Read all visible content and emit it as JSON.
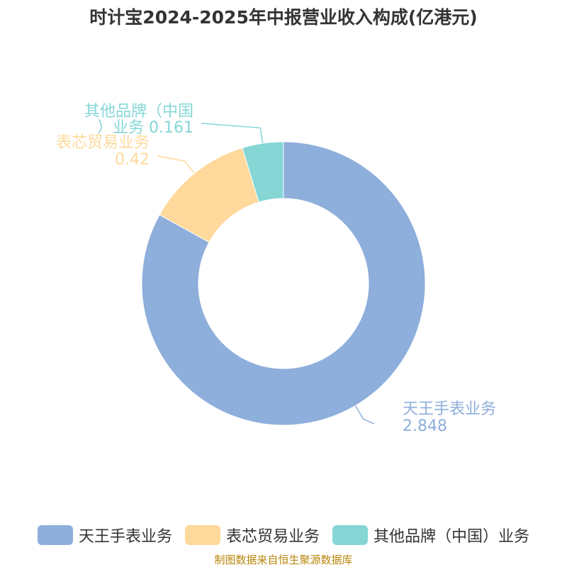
{
  "chart_data": {
    "type": "pie",
    "title": "时计宝2024-2025年中报营业收入构成(亿港元)",
    "donut": true,
    "series": [
      {
        "name": "天王手表业务",
        "value": 2.848,
        "value_label": "2.848",
        "color": "#8eaedb",
        "label_lines": [
          "天王手表业务",
          "2.848"
        ]
      },
      {
        "name": "表芯贸易业务",
        "value": 0.42,
        "value_label": "0.42",
        "color": "#fed99b",
        "label_lines": [
          "表芯贸易业务",
          "0.42"
        ]
      },
      {
        "name": "其他品牌（中国）业务",
        "value": 0.161,
        "value_label": "0.161",
        "color": "#86d6d6",
        "label_lines": [
          "其他品牌（中国",
          "）业务 0.161"
        ]
      }
    ],
    "legend_position": "bottom"
  },
  "legend": {
    "items": [
      {
        "label": "天王手表业务",
        "color": "#8eaedb"
      },
      {
        "label": "表芯贸易业务",
        "color": "#fed99b"
      },
      {
        "label": "其他品牌（中国）业务",
        "color": "#86d6d6"
      }
    ]
  },
  "source": {
    "text": "制图数据来自恒生聚源数据库",
    "color": "#b8860b"
  }
}
